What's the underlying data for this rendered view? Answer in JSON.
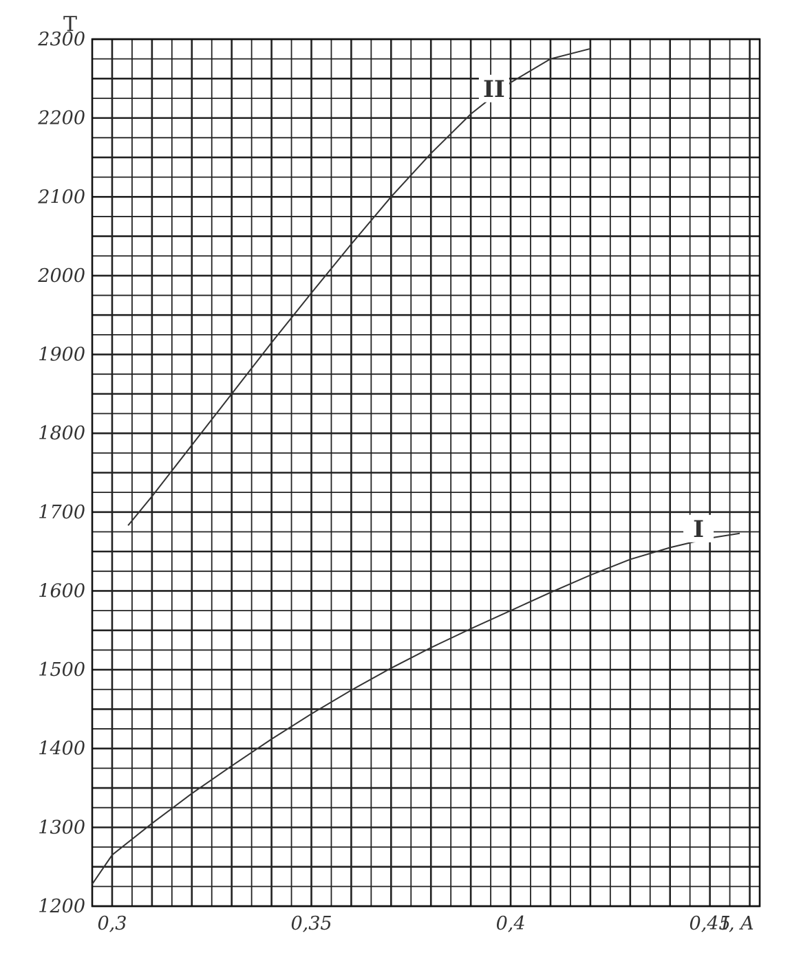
{
  "chart_data": {
    "type": "line",
    "title": "",
    "xlabel": "I, A",
    "ylabel": "T",
    "xlim": [
      0.295,
      0.4625
    ],
    "ylim": [
      1200,
      2300
    ],
    "x_ticks": [
      {
        "value": 0.3,
        "label": "0,3"
      },
      {
        "value": 0.35,
        "label": "0,35"
      },
      {
        "value": 0.4,
        "label": "0,4"
      },
      {
        "value": 0.45,
        "label": "0,45"
      }
    ],
    "y_ticks": [
      {
        "value": 1200,
        "label": "1200"
      },
      {
        "value": 1300,
        "label": "1300"
      },
      {
        "value": 1400,
        "label": "1400"
      },
      {
        "value": 1500,
        "label": "1500"
      },
      {
        "value": 1600,
        "label": "1600"
      },
      {
        "value": 1700,
        "label": "1700"
      },
      {
        "value": 1800,
        "label": "1800"
      },
      {
        "value": 1900,
        "label": "1900"
      },
      {
        "value": 2000,
        "label": "2000"
      },
      {
        "value": 2100,
        "label": "2100"
      },
      {
        "value": 2200,
        "label": "2200"
      },
      {
        "value": 2300,
        "label": "2300"
      }
    ],
    "grid": {
      "x_step": 0.005,
      "y_step": 25,
      "x_major_step": 0.01,
      "y_major_step": 50
    },
    "series": [
      {
        "name": "I",
        "x": [
          0.295,
          0.3,
          0.31,
          0.32,
          0.33,
          0.34,
          0.35,
          0.36,
          0.37,
          0.38,
          0.39,
          0.4,
          0.41,
          0.42,
          0.43,
          0.44,
          0.45,
          0.4575
        ],
        "y": [
          1228,
          1265,
          1305,
          1343,
          1378,
          1412,
          1444,
          1474,
          1502,
          1528,
          1552,
          1575,
          1598,
          1620,
          1640,
          1655,
          1667,
          1673
        ]
      },
      {
        "name": "II",
        "x": [
          0.304,
          0.31,
          0.32,
          0.33,
          0.34,
          0.35,
          0.36,
          0.37,
          0.38,
          0.39,
          0.4,
          0.41,
          0.42
        ],
        "y": [
          1683,
          1720,
          1785,
          1850,
          1915,
          1978,
          2040,
          2100,
          2155,
          2205,
          2245,
          2275,
          2288
        ]
      }
    ]
  }
}
